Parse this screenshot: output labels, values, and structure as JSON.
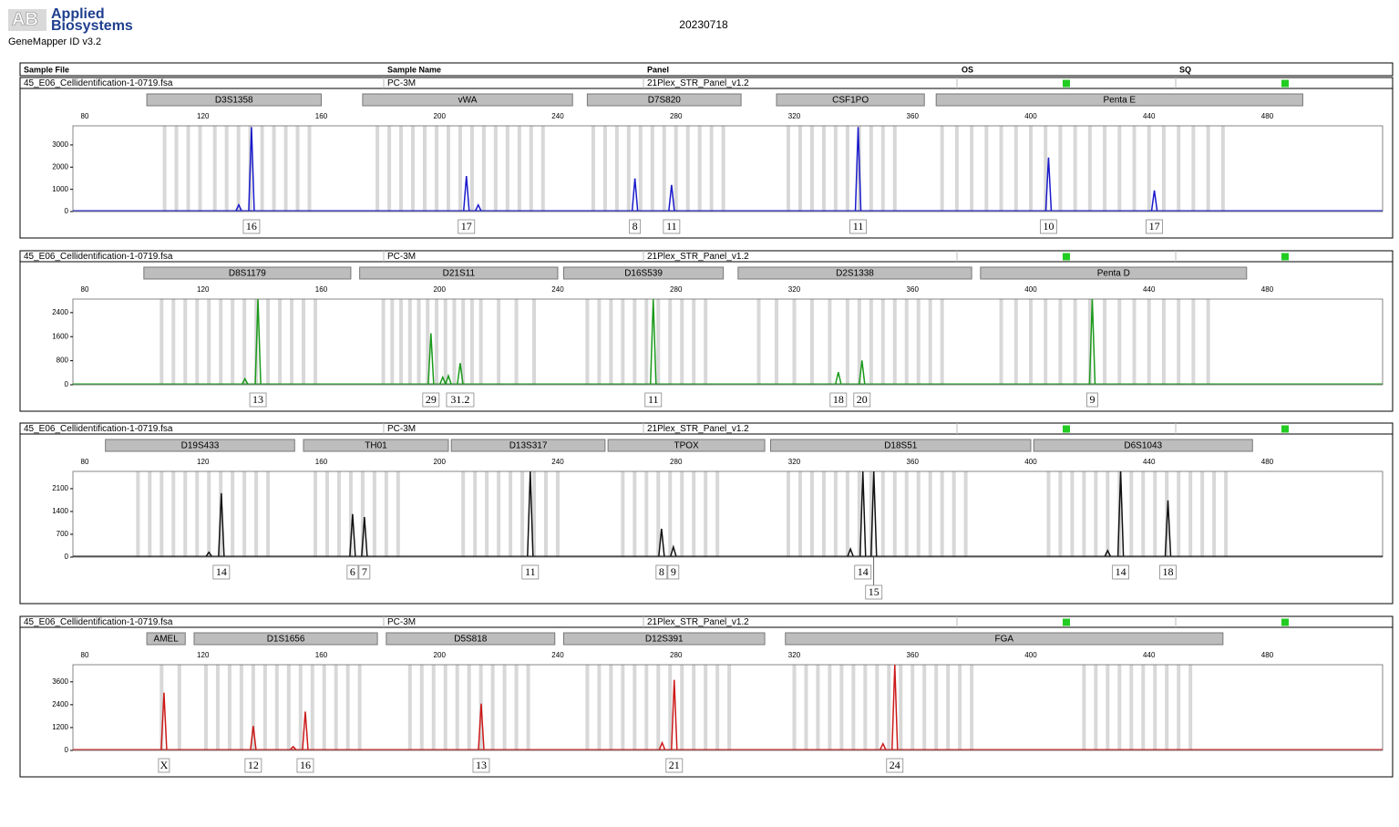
{
  "header": {
    "logo_line1": "Applied",
    "logo_line2": "Biosystems",
    "software": "GeneMapper ID v3.2",
    "date": "20230718"
  },
  "columns": [
    "Sample File",
    "Sample Name",
    "Panel",
    "OS",
    "SQ"
  ],
  "panels": [
    {
      "sample_file": "45_E06_Cellidentification-1-0719.fsa",
      "sample_name": "PC-3M",
      "panel": "21Plex_STR_Panel_v1.2",
      "color": "#1a1acc",
      "xlim": [
        76,
        519
      ],
      "xticks": [
        80,
        120,
        160,
        200,
        240,
        280,
        320,
        360,
        400,
        440,
        480
      ],
      "ylim": [
        0,
        3860
      ],
      "yticks": [
        0,
        1000,
        2000,
        3000
      ],
      "loci": [
        {
          "name": "D3S1358",
          "start": 101,
          "end": 160
        },
        {
          "name": "vWA",
          "start": 174,
          "end": 245
        },
        {
          "name": "D7S820",
          "start": 250,
          "end": 302
        },
        {
          "name": "CSF1PO",
          "start": 314,
          "end": 364
        },
        {
          "name": "Penta E",
          "start": 368,
          "end": 492
        }
      ],
      "bins": [
        107,
        111,
        115,
        119,
        124,
        128,
        132,
        136,
        140,
        144,
        148,
        152,
        156,
        179,
        183,
        187,
        191,
        195,
        199,
        203,
        207,
        211,
        215,
        219,
        223,
        227,
        231,
        235,
        252,
        256,
        260,
        264,
        268,
        272,
        276,
        280,
        284,
        288,
        292,
        296,
        318,
        322,
        326,
        330,
        334,
        338,
        342,
        346,
        350,
        354,
        370,
        375,
        380,
        385,
        390,
        395,
        400,
        405,
        410,
        415,
        420,
        425,
        430,
        435,
        440,
        445,
        450,
        455,
        460,
        465
      ],
      "peaks": [
        {
          "x": 132.1,
          "height": 300,
          "allele": null
        },
        {
          "x": 136.4,
          "height": 3800,
          "allele": "16"
        },
        {
          "x": 209.1,
          "height": 1600,
          "allele": "17"
        },
        {
          "x": 213.1,
          "height": 300,
          "allele": null
        },
        {
          "x": 266.1,
          "height": 1490,
          "allele": "8"
        },
        {
          "x": 278.5,
          "height": 1200,
          "allele": "11"
        },
        {
          "x": 341.6,
          "height": 3800,
          "allele": "11"
        },
        {
          "x": 406.0,
          "height": 2430,
          "allele": "10"
        },
        {
          "x": 441.8,
          "height": 950,
          "allele": "17"
        }
      ]
    },
    {
      "sample_file": "45_E06_Cellidentification-1-0719.fsa",
      "sample_name": "PC-3M",
      "panel": "21Plex_STR_Panel_v1.2",
      "color": "#1a9a1a",
      "xlim": [
        76,
        519
      ],
      "xticks": [
        80,
        120,
        160,
        200,
        240,
        280,
        320,
        360,
        400,
        440,
        480
      ],
      "ylim": [
        0,
        2850
      ],
      "yticks": [
        0,
        800,
        1600,
        2400
      ],
      "loci": [
        {
          "name": "D8S1179",
          "start": 100,
          "end": 170
        },
        {
          "name": "D21S11",
          "start": 173,
          "end": 240
        },
        {
          "name": "D16S539",
          "start": 242,
          "end": 296
        },
        {
          "name": "D2S1338",
          "start": 301,
          "end": 380
        },
        {
          "name": "Penta D",
          "start": 383,
          "end": 473
        }
      ],
      "bins": [
        106,
        110,
        114,
        118,
        122,
        126,
        130,
        134,
        138,
        142,
        146,
        150,
        154,
        158,
        181,
        184,
        187,
        190,
        193,
        196,
        199,
        202,
        205,
        208,
        211,
        214,
        220,
        226,
        232,
        250,
        254,
        258,
        262,
        266,
        270,
        274,
        278,
        282,
        286,
        290,
        308,
        314,
        320,
        326,
        332,
        338,
        342,
        346,
        350,
        354,
        358,
        362,
        366,
        370,
        390,
        395,
        400,
        405,
        410,
        415,
        420,
        425,
        430,
        435,
        440,
        445,
        450,
        455,
        460
      ],
      "peaks": [
        {
          "x": 134.2,
          "height": 200,
          "allele": null
        },
        {
          "x": 138.6,
          "height": 2850,
          "allele": "13"
        },
        {
          "x": 197.1,
          "height": 1710,
          "allele": "29"
        },
        {
          "x": 201.1,
          "height": 250,
          "allele": null
        },
        {
          "x": 203.0,
          "height": 300,
          "allele": null
        },
        {
          "x": 207.0,
          "height": 720,
          "allele": "31.2"
        },
        {
          "x": 272.3,
          "height": 2850,
          "allele": "11"
        },
        {
          "x": 334.9,
          "height": 420,
          "allele": "18"
        },
        {
          "x": 342.9,
          "height": 810,
          "allele": "20"
        },
        {
          "x": 420.8,
          "height": 2850,
          "allele": "9"
        }
      ]
    },
    {
      "sample_file": "45_E06_Cellidentification-1-0719.fsa",
      "sample_name": "PC-3M",
      "panel": "21Plex_STR_Panel_v1.2",
      "color": "#111111",
      "xlim": [
        76,
        519
      ],
      "xticks": [
        80,
        120,
        160,
        200,
        240,
        280,
        320,
        360,
        400,
        440,
        480
      ],
      "ylim": [
        0,
        2630
      ],
      "yticks": [
        0,
        700,
        1400,
        2100
      ],
      "loci": [
        {
          "name": "D19S433",
          "start": 87,
          "end": 151
        },
        {
          "name": "TH01",
          "start": 154,
          "end": 203
        },
        {
          "name": "D13S317",
          "start": 204,
          "end": 256
        },
        {
          "name": "TPOX",
          "start": 257,
          "end": 310
        },
        {
          "name": "D18S51",
          "start": 312,
          "end": 400
        },
        {
          "name": "D6S1043",
          "start": 401,
          "end": 475
        }
      ],
      "bins": [
        98,
        102,
        106,
        110,
        114,
        118,
        122,
        126,
        130,
        134,
        138,
        142,
        158,
        162,
        166,
        170,
        174,
        178,
        182,
        186,
        208,
        212,
        216,
        220,
        224,
        228,
        232,
        236,
        240,
        262,
        266,
        270,
        274,
        278,
        282,
        286,
        290,
        294,
        318,
        322,
        326,
        330,
        334,
        338,
        342,
        346,
        350,
        354,
        358,
        362,
        366,
        370,
        374,
        378,
        406,
        410,
        414,
        418,
        422,
        426,
        430,
        434,
        438,
        442,
        446,
        450,
        454,
        458,
        462,
        466
      ],
      "peaks": [
        {
          "x": 122.0,
          "height": 150,
          "allele": null
        },
        {
          "x": 126.2,
          "height": 1960,
          "allele": "14"
        },
        {
          "x": 170.6,
          "height": 1320,
          "allele": "6"
        },
        {
          "x": 174.6,
          "height": 1230,
          "allele": "7"
        },
        {
          "x": 230.7,
          "height": 2630,
          "allele": "11"
        },
        {
          "x": 275.1,
          "height": 870,
          "allele": "8"
        },
        {
          "x": 279.1,
          "height": 310,
          "allele": "9"
        },
        {
          "x": 339.0,
          "height": 250,
          "allele": null
        },
        {
          "x": 343.2,
          "height": 2630,
          "allele": "14"
        },
        {
          "x": 346.9,
          "height": 2630,
          "allele": "15"
        },
        {
          "x": 426.0,
          "height": 200,
          "allele": null
        },
        {
          "x": 430.4,
          "height": 2630,
          "allele": "14"
        },
        {
          "x": 446.4,
          "height": 1740,
          "allele": "18"
        }
      ]
    },
    {
      "sample_file": "45_E06_Cellidentification-1-0719.fsa",
      "sample_name": "PC-3M",
      "panel": "21Plex_STR_Panel_v1.2",
      "color": "#cc1a1a",
      "xlim": [
        76,
        519
      ],
      "xticks": [
        80,
        120,
        160,
        200,
        240,
        280,
        320,
        360,
        400,
        440,
        480
      ],
      "ylim": [
        0,
        4500
      ],
      "yticks": [
        0,
        1200,
        2400,
        3600
      ],
      "loci": [
        {
          "name": "AMEL",
          "start": 101,
          "end": 114
        },
        {
          "name": "D1S1656",
          "start": 117,
          "end": 179
        },
        {
          "name": "D5S818",
          "start": 182,
          "end": 239
        },
        {
          "name": "D12S391",
          "start": 242,
          "end": 310
        },
        {
          "name": "FGA",
          "start": 317,
          "end": 465
        }
      ],
      "bins": [
        106,
        112,
        121,
        125,
        129,
        133,
        137,
        141,
        145,
        149,
        153,
        157,
        161,
        165,
        169,
        173,
        190,
        194,
        198,
        202,
        206,
        210,
        214,
        218,
        222,
        226,
        230,
        250,
        254,
        258,
        262,
        266,
        270,
        274,
        278,
        282,
        286,
        290,
        294,
        298,
        320,
        324,
        328,
        332,
        336,
        340,
        344,
        348,
        352,
        356,
        360,
        364,
        368,
        372,
        376,
        380,
        418,
        422,
        426,
        430,
        434,
        438,
        442,
        446,
        450,
        454
      ],
      "peaks": [
        {
          "x": 106.8,
          "height": 3030,
          "allele": "X"
        },
        {
          "x": 137.0,
          "height": 1280,
          "allele": "12"
        },
        {
          "x": 150.5,
          "height": 200,
          "allele": null
        },
        {
          "x": 154.6,
          "height": 2040,
          "allele": "16"
        },
        {
          "x": 214.1,
          "height": 2460,
          "allele": "13"
        },
        {
          "x": 275.3,
          "height": 400,
          "allele": null
        },
        {
          "x": 279.4,
          "height": 3700,
          "allele": "21"
        },
        {
          "x": 350.0,
          "height": 350,
          "allele": null
        },
        {
          "x": 354.0,
          "height": 4500,
          "allele": "24"
        }
      ]
    }
  ]
}
